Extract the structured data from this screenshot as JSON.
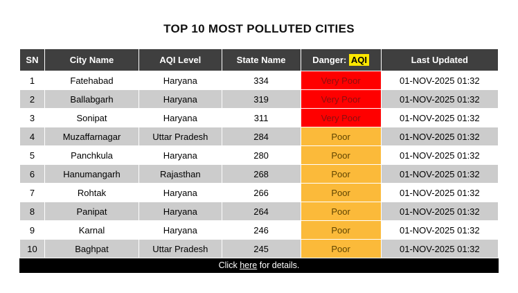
{
  "page": {
    "title": "TOP 10 MOST POLLUTED CITIES"
  },
  "table": {
    "headers": {
      "sn": "SN",
      "city": "City Name",
      "aqi_level": "AQI Level",
      "state": "State Name",
      "danger_prefix": "Danger: ",
      "danger_highlight": "AQI",
      "last_updated": "Last Updated"
    },
    "rows": [
      {
        "sn": "1",
        "city": "Fatehabad",
        "aqi_level": "Haryana",
        "state_name": "334",
        "danger": "Very Poor",
        "severity": "very-poor",
        "last_updated": "01-NOV-2025 01:32"
      },
      {
        "sn": "2",
        "city": "Ballabgarh",
        "aqi_level": "Haryana",
        "state_name": "319",
        "danger": "Very Poor",
        "severity": "very-poor",
        "last_updated": "01-NOV-2025 01:32"
      },
      {
        "sn": "3",
        "city": "Sonipat",
        "aqi_level": "Haryana",
        "state_name": "311",
        "danger": "Very Poor",
        "severity": "very-poor",
        "last_updated": "01-NOV-2025 01:32"
      },
      {
        "sn": "4",
        "city": "Muzaffarnagar",
        "aqi_level": "Uttar Pradesh",
        "state_name": "284",
        "danger": "Poor",
        "severity": "poor",
        "last_updated": "01-NOV-2025 01:32"
      },
      {
        "sn": "5",
        "city": "Panchkula",
        "aqi_level": "Haryana",
        "state_name": "280",
        "danger": "Poor",
        "severity": "poor",
        "last_updated": "01-NOV-2025 01:32"
      },
      {
        "sn": "6",
        "city": "Hanumangarh",
        "aqi_level": "Rajasthan",
        "state_name": "268",
        "danger": "Poor",
        "severity": "poor",
        "last_updated": "01-NOV-2025 01:32"
      },
      {
        "sn": "7",
        "city": "Rohtak",
        "aqi_level": "Haryana",
        "state_name": "266",
        "danger": "Poor",
        "severity": "poor",
        "last_updated": "01-NOV-2025 01:32"
      },
      {
        "sn": "8",
        "city": "Panipat",
        "aqi_level": "Haryana",
        "state_name": "264",
        "danger": "Poor",
        "severity": "poor",
        "last_updated": "01-NOV-2025 01:32"
      },
      {
        "sn": "9",
        "city": "Karnal",
        "aqi_level": "Haryana",
        "state_name": "246",
        "danger": "Poor",
        "severity": "poor",
        "last_updated": "01-NOV-2025 01:32"
      },
      {
        "sn": "10",
        "city": "Baghpat",
        "aqi_level": "Uttar Pradesh",
        "state_name": "245",
        "danger": "Poor",
        "severity": "poor",
        "last_updated": "01-NOV-2025 01:32"
      }
    ]
  },
  "footer": {
    "text_before": "Click ",
    "link_text": "here",
    "text_after": " for details."
  },
  "colors": {
    "header_bg": "#3f3f3f",
    "row_alt_bg": "#cccccc",
    "very_poor_bg": "#ff0000",
    "poor_bg": "#fbba3a",
    "highlight_bg": "#ffe800",
    "footer_bg": "#000000"
  }
}
